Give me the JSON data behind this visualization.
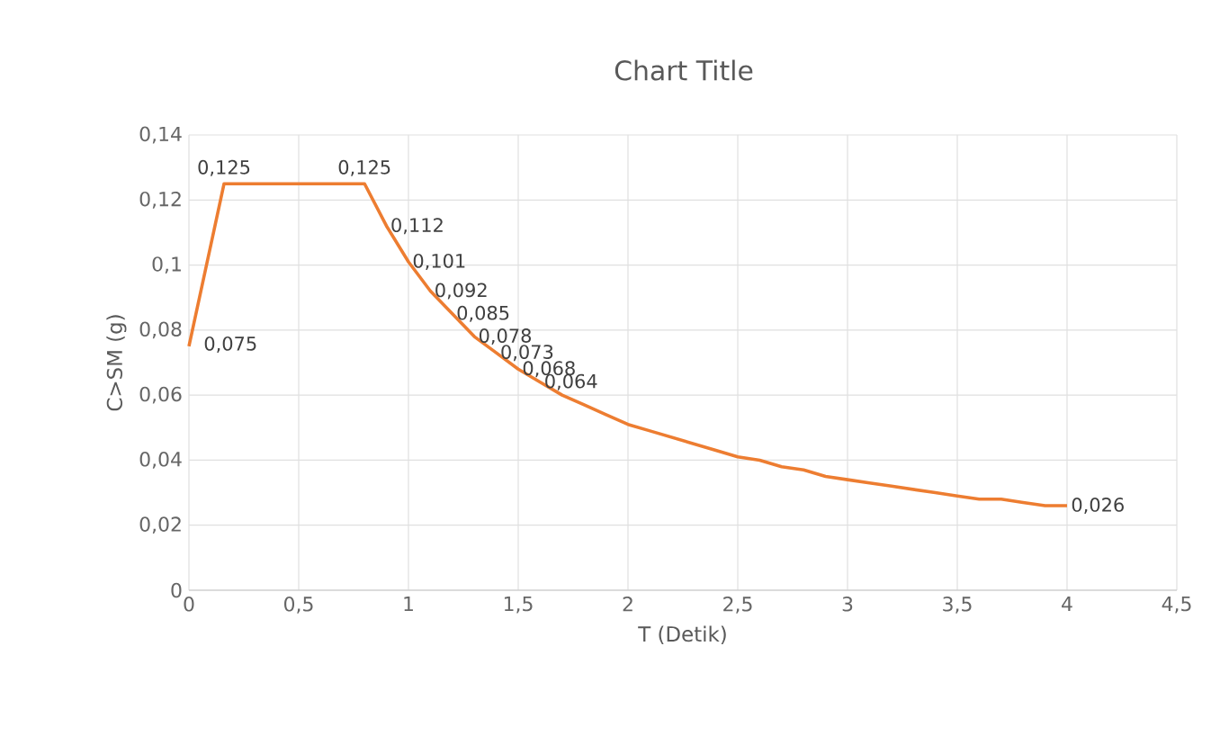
{
  "chart_data": {
    "type": "line",
    "title": "Chart Title",
    "xlabel": "T (Detik)",
    "ylabel": "C>SM (g)",
    "x": [
      0,
      0.16,
      0.8,
      0.9,
      1.0,
      1.1,
      1.2,
      1.3,
      1.4,
      1.5,
      1.6,
      1.7,
      1.8,
      1.9,
      2.0,
      2.1,
      2.2,
      2.3,
      2.4,
      2.5,
      2.6,
      2.7,
      2.8,
      2.9,
      3.0,
      3.1,
      3.2,
      3.3,
      3.4,
      3.5,
      3.6,
      3.7,
      3.8,
      3.9,
      4.0
    ],
    "series": [
      {
        "color": "#ed7d31",
        "values": [
          0.075,
          0.125,
          0.125,
          0.112,
          0.101,
          0.092,
          0.085,
          0.078,
          0.073,
          0.068,
          0.064,
          0.06,
          0.057,
          0.054,
          0.051,
          0.049,
          0.047,
          0.045,
          0.043,
          0.041,
          0.04,
          0.038,
          0.037,
          0.035,
          0.034,
          0.033,
          0.032,
          0.031,
          0.03,
          0.029,
          0.028,
          0.028,
          0.027,
          0.026,
          0.026
        ],
        "value_labels": [
          "0,075",
          "0,125",
          "0,125",
          "0,112",
          "0,101",
          "0,092",
          "0,085",
          "0,078",
          "0,073",
          "0,068",
          "0,064",
          null,
          null,
          null,
          null,
          null,
          null,
          null,
          null,
          null,
          null,
          null,
          null,
          null,
          null,
          null,
          null,
          null,
          null,
          null,
          null,
          null,
          null,
          null,
          "0,026"
        ]
      }
    ],
    "xlim": [
      0,
      4.5
    ],
    "ylim": [
      0,
      0.14
    ],
    "xticks": [
      0,
      {
        "value": 0.5,
        "label": "0,5"
      },
      1,
      {
        "value": 1.5,
        "label": "1,5"
      },
      2,
      {
        "value": 2.5,
        "label": "2,5"
      },
      3,
      {
        "value": 3.5,
        "label": "3,5"
      },
      4,
      {
        "value": 4.5,
        "label": "4,5"
      }
    ],
    "yticks": [
      0,
      {
        "value": 0.02,
        "label": "0,02"
      },
      {
        "value": 0.04,
        "label": "0,04"
      },
      {
        "value": 0.06,
        "label": "0,06"
      },
      {
        "value": 0.08,
        "label": "0,08"
      },
      {
        "value": 0.1,
        "label": "0,1"
      },
      {
        "value": 0.12,
        "label": "0,12"
      },
      {
        "value": 0.14,
        "label": "0,14"
      }
    ],
    "grid": true,
    "marker": "none",
    "line_style": "solid"
  }
}
